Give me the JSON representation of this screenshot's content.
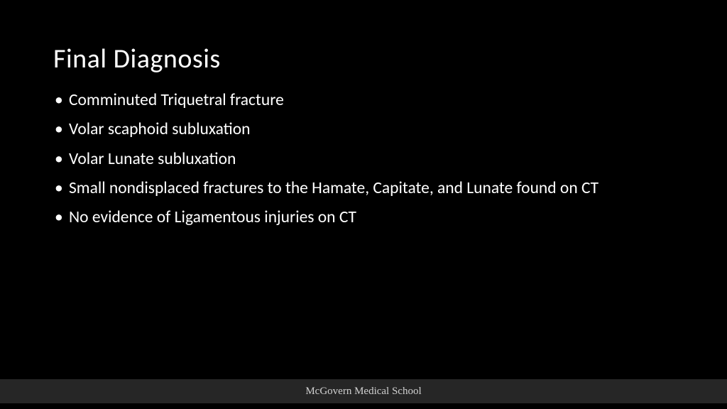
{
  "slide": {
    "title": "Final Diagnosis",
    "bullets": [
      "Comminuted Triquetral fracture",
      "Volar scaphoid subluxation",
      "Volar Lunate subluxation",
      "Small nondisplaced fractures to the Hamate, Capitate, and Lunate found on CT",
      "No evidence of Ligamentous injuries on CT"
    ],
    "footer": "McGovern Medical School"
  },
  "style": {
    "background_color": "#000000",
    "text_color": "#ffffff",
    "title_fontsize": 38,
    "bullet_fontsize": 23.5,
    "footer_bar_color": "#262626",
    "footer_text_color": "#d0d0d0",
    "footer_fontsize": 15,
    "footer_font_family": "Garamond, serif",
    "body_font_family": "Segoe UI, Calibri, sans-serif"
  }
}
